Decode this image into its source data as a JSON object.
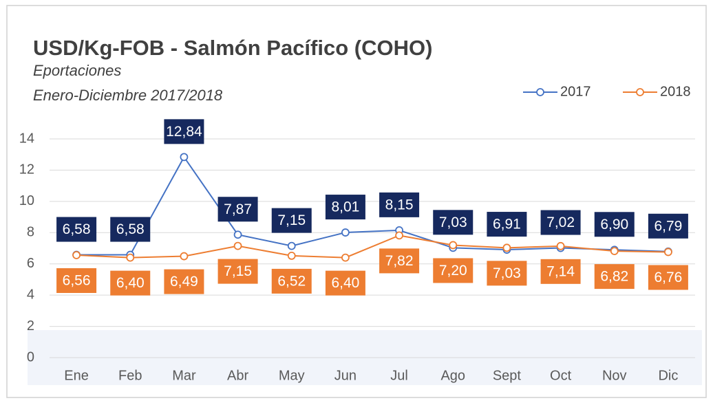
{
  "chart_data": {
    "type": "line",
    "title": "USD/Kg-FOB - Salmón Pacífico (COHO)",
    "subtitle": [
      "Eportaciones",
      "Enero-Diciembre 2017/2018"
    ],
    "categories": [
      "Ene",
      "Feb",
      "Mar",
      "Abr",
      "May",
      "Jun",
      "Jul",
      "Ago",
      "Sept",
      "Oct",
      "Nov",
      "Dic"
    ],
    "series": [
      {
        "name": "2017",
        "color": "#4472c4",
        "label_color": "#16295e",
        "values": [
          6.58,
          6.58,
          12.84,
          7.87,
          7.15,
          8.01,
          8.15,
          7.03,
          6.91,
          7.02,
          6.9,
          6.79
        ],
        "value_labels": [
          "6,58",
          "6,58",
          "12,84",
          "7,87",
          "7,15",
          "8,01",
          "8,15",
          "7,03",
          "6,91",
          "7,02",
          "6,90",
          "6,79"
        ]
      },
      {
        "name": "2018",
        "color": "#ed7d31",
        "label_color": "#ed7d31",
        "values": [
          6.56,
          6.4,
          6.49,
          7.15,
          6.52,
          6.4,
          7.82,
          7.2,
          7.03,
          7.14,
          6.82,
          6.76
        ],
        "value_labels": [
          "6,56",
          "6,40",
          "6,49",
          "7,15",
          "6,52",
          "6,40",
          "7,82",
          "7,20",
          "7,03",
          "7,14",
          "6,82",
          "6,76"
        ]
      }
    ],
    "ylim": [
      0,
      14
    ],
    "yticks": [
      0,
      2,
      4,
      6,
      8,
      10,
      12,
      14
    ],
    "grid": true,
    "legend": "top-right"
  }
}
